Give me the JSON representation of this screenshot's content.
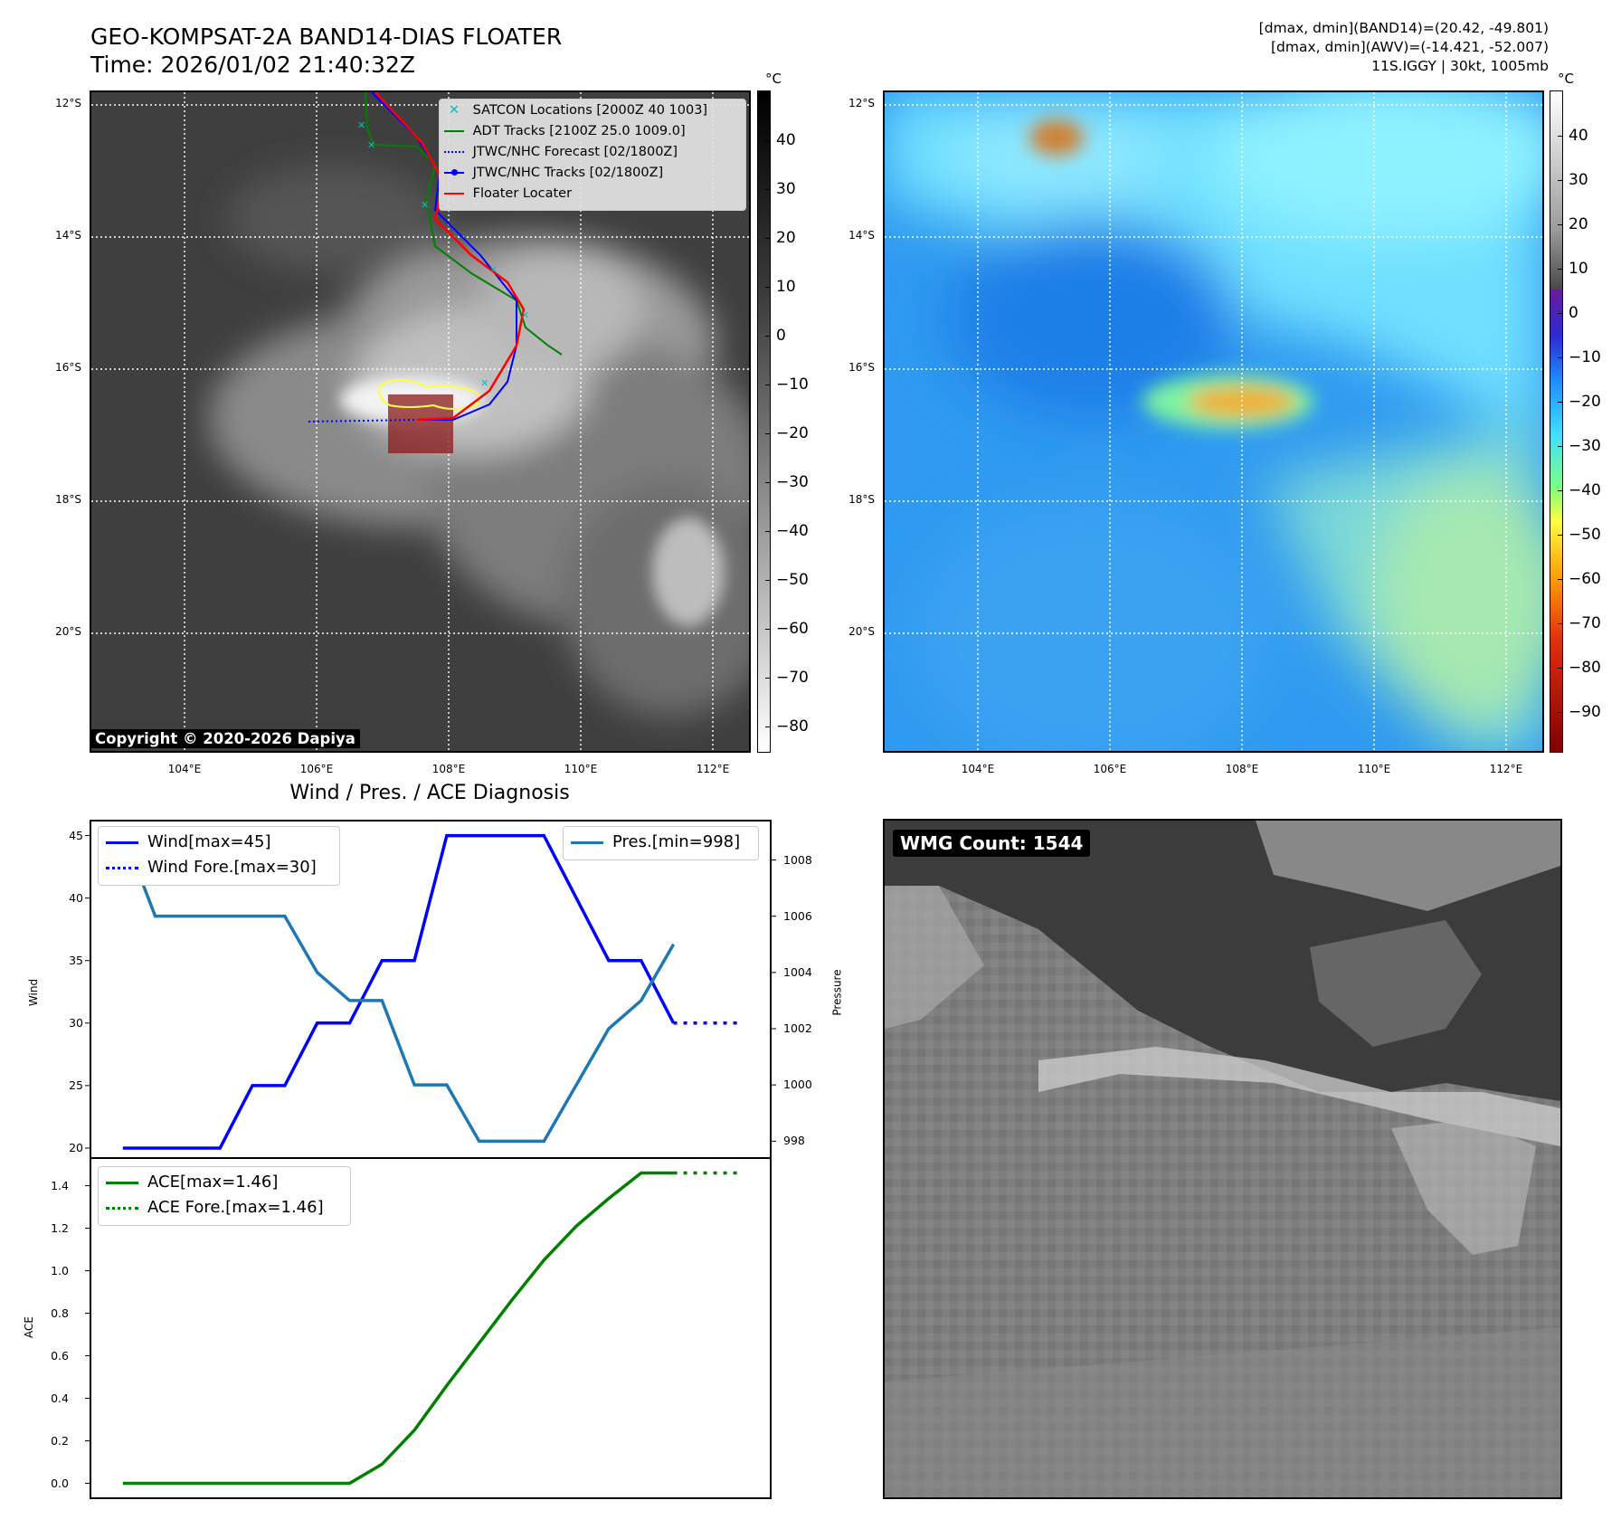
{
  "header": {
    "title_line1": "GEO-KOMPSAT-2A BAND14-DIAS FLOATER",
    "title_line2": "Time: 2026/01/02 21:40:32Z",
    "dmax_band14": "[dmax, dmin](BAND14)=(20.42, -49.801)",
    "dmax_awv": "[dmax, dmin](AWV)=(-14.421, -52.007)",
    "storm_info": "11S.IGGY | 30kt, 1005mb"
  },
  "map_axes": {
    "lat_labels": [
      "12°S",
      "14°S",
      "16°S",
      "18°S",
      "20°S"
    ],
    "lon_labels": [
      "104°E",
      "106°E",
      "108°E",
      "110°E",
      "112°E"
    ]
  },
  "ir_colorbar": {
    "unit": "°C",
    "ticks": [
      "40",
      "30",
      "20",
      "10",
      "0",
      "−10",
      "−20",
      "−30",
      "−40",
      "−50",
      "−60",
      "−70",
      "−80"
    ]
  },
  "wv_colorbar": {
    "unit": "°C",
    "ticks": [
      "40",
      "30",
      "20",
      "10",
      "0",
      "−10",
      "−20",
      "−30",
      "−40",
      "−50",
      "−60",
      "−70",
      "−80",
      "−90"
    ]
  },
  "copyright": "Copyright © 2020-2026 Dapiya",
  "track_legend": [
    {
      "label": "SATCON Locations [2000Z 40 1003]",
      "color": "#00c0c0",
      "style": "x"
    },
    {
      "label": "ADT Tracks [2100Z 25.0 1009.0]",
      "color": "#008000",
      "style": "solid"
    },
    {
      "label": "JTWC/NHC Forecast [02/1800Z]",
      "color": "#0000ff",
      "style": "dotted"
    },
    {
      "label": "JTWC/NHC Tracks [02/1800Z]",
      "color": "#0000ff",
      "style": "dot-line"
    },
    {
      "label": "Floater Locater",
      "color": "#ff0000",
      "style": "solid"
    }
  ],
  "wmg_label": "WMG Count: 1544",
  "diagnosis": {
    "title": "Wind / Pres. / ACE Diagnosis",
    "wind_axis_label": "Wind",
    "pressure_axis_label": "Pressure",
    "ace_axis_label": "ACE",
    "wind_ticks": [
      "45",
      "40",
      "35",
      "30",
      "25",
      "20"
    ],
    "pressure_ticks": [
      "1008",
      "1006",
      "1004",
      "1002",
      "1000",
      "998"
    ],
    "ace_ticks": [
      "1.4",
      "1.2",
      "1.0",
      "0.8",
      "0.6",
      "0.4",
      "0.2",
      "0.0"
    ],
    "legend_wind": "Wind[max=45]",
    "legend_wind_fore": "Wind Fore.[max=30]",
    "legend_pres": "Pres.[min=998]",
    "legend_ace": "ACE[max=1.46]",
    "legend_ace_fore": "ACE Fore.[max=1.46]"
  },
  "chart_data": [
    {
      "type": "line",
      "title": "Wind / Pres. / ACE Diagnosis",
      "ylabel": "Wind",
      "ylim": [
        19.2,
        46.2
      ],
      "y2label": "Pressure",
      "y2lim": [
        997.4,
        1009.4
      ],
      "x": [
        0,
        1,
        2,
        3,
        4,
        5,
        6,
        7,
        8,
        9,
        10,
        11,
        12,
        13,
        14,
        15,
        16,
        17
      ],
      "series": [
        {
          "name": "Wind[max=45]",
          "color": "#0000ff",
          "axis": "left",
          "style": "solid",
          "x": [
            0,
            1,
            2,
            3,
            4,
            5,
            6,
            7,
            8,
            9,
            10,
            11,
            12,
            13,
            14,
            15,
            16,
            17
          ],
          "values": [
            20,
            20,
            20,
            20,
            25,
            25,
            30,
            30,
            35,
            35,
            45,
            45,
            45,
            45,
            40,
            35,
            35,
            30
          ]
        },
        {
          "name": "Wind Fore.[max=30]",
          "color": "#0000ff",
          "axis": "left",
          "style": "dotted",
          "x": [
            17,
            19
          ],
          "values": [
            30,
            30
          ]
        },
        {
          "name": "Pres.[min=998]",
          "color": "#1f77b4",
          "axis": "right",
          "style": "solid",
          "x": [
            0,
            1,
            2,
            3,
            4,
            5,
            6,
            7,
            8,
            9,
            10,
            11,
            12,
            13,
            14,
            15,
            16,
            17
          ],
          "values": [
            1009,
            1006,
            1006,
            1006,
            1006,
            1006,
            1004,
            1003,
            1003,
            1000,
            1000,
            998,
            998,
            998,
            1000,
            1002,
            1003,
            1005
          ]
        }
      ]
    },
    {
      "type": "line",
      "ylabel": "ACE",
      "ylim": [
        -0.07,
        1.53
      ],
      "x": [
        0,
        1,
        2,
        3,
        4,
        5,
        6,
        7,
        8,
        9,
        10,
        11,
        12,
        13,
        14,
        15,
        16,
        17
      ],
      "series": [
        {
          "name": "ACE[max=1.46]",
          "color": "#008000",
          "style": "solid",
          "x": [
            0,
            1,
            2,
            3,
            4,
            5,
            6,
            7,
            8,
            9,
            10,
            11,
            12,
            13,
            14,
            15,
            16,
            17
          ],
          "values": [
            0.0,
            0.0,
            0.0,
            0.0,
            0.0,
            0.0,
            0.0,
            0.0,
            0.09,
            0.25,
            0.46,
            0.66,
            0.86,
            1.05,
            1.21,
            1.34,
            1.46,
            1.46
          ]
        },
        {
          "name": "ACE Fore.[max=1.46]",
          "color": "#008000",
          "style": "dotted",
          "x": [
            17,
            19
          ],
          "values": [
            1.46,
            1.46
          ]
        }
      ]
    }
  ]
}
